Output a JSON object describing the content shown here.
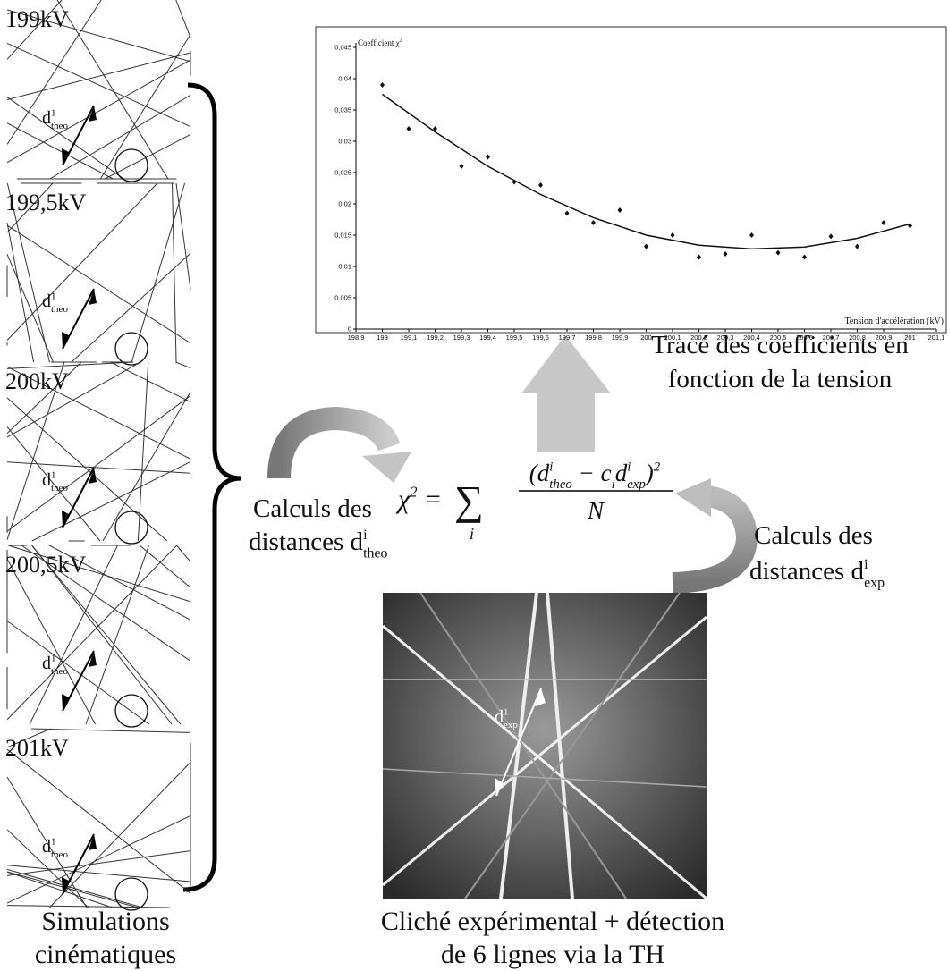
{
  "simulations": {
    "panels": [
      {
        "label": "199kV",
        "distance": [
          {
            "text": "d"
          },
          {
            "text": "1",
            "pos": "sup"
          },
          {
            "text": "theo",
            "pos": "sub"
          }
        ]
      },
      {
        "label": "199,5kV",
        "distance": [
          {
            "text": "d"
          },
          {
            "text": "1",
            "pos": "sup"
          },
          {
            "text": "theo",
            "pos": "sub"
          }
        ]
      },
      {
        "label": "200kV",
        "distance": [
          {
            "text": "d"
          },
          {
            "text": "1",
            "pos": "sup"
          },
          {
            "text": "theo",
            "pos": "sub"
          }
        ]
      },
      {
        "label": "200,5kV",
        "distance": [
          {
            "text": "d"
          },
          {
            "text": "1",
            "pos": "sup"
          },
          {
            "text": "theo",
            "pos": "sub"
          }
        ]
      },
      {
        "label": "201kV",
        "distance": [
          {
            "text": "d"
          },
          {
            "text": "1",
            "pos": "sup"
          },
          {
            "text": "theo",
            "pos": "sub"
          }
        ]
      }
    ],
    "caption": [
      "Simulations",
      "cinématiques"
    ]
  },
  "chart_data": {
    "type": "scatter",
    "y_title": [
      {
        "text": "Coefficient "
      },
      {
        "text": "χ"
      },
      {
        "text": "2",
        "pos": "sup"
      }
    ],
    "x_label": "Tension d'accélération (kV)",
    "x": [
      199,
      199.1,
      199.2,
      199.3,
      199.4,
      199.5,
      199.6,
      199.7,
      199.8,
      199.9,
      200,
      200.1,
      200.2,
      200.3,
      200.4,
      200.5,
      200.6,
      200.7,
      200.8,
      200.9,
      201
    ],
    "series": [
      {
        "color": "#111111",
        "values": [
          0.039,
          0.032,
          0.032,
          0.026,
          0.0275,
          0.0235,
          0.023,
          0.0185,
          0.017,
          0.019,
          0.0132,
          0.015,
          0.0115,
          0.012,
          0.015,
          0.0122,
          0.0115,
          0.0148,
          0.0132,
          0.017,
          0.0165
        ]
      }
    ],
    "trend": {
      "color": "#111111",
      "x": [
        199,
        199.2,
        199.4,
        199.6,
        199.8,
        200,
        200.2,
        200.4,
        200.6,
        200.8,
        201
      ],
      "values": [
        0.0375,
        0.0315,
        0.026,
        0.0215,
        0.0178,
        0.015,
        0.0134,
        0.0128,
        0.0131,
        0.0145,
        0.0168
      ]
    },
    "xlim": [
      198.9,
      201.1
    ],
    "ylim": [
      0,
      0.045
    ],
    "xticks": [
      {
        "value": 198.9,
        "label": "198,9"
      },
      {
        "value": 199,
        "label": "199"
      },
      {
        "value": 199.1,
        "label": "199,1"
      },
      {
        "value": 199.2,
        "label": "199,2"
      },
      {
        "value": 199.3,
        "label": "199,3"
      },
      {
        "value": 199.4,
        "label": "199,4"
      },
      {
        "value": 199.5,
        "label": "199,5"
      },
      {
        "value": 199.6,
        "label": "199,6"
      },
      {
        "value": 199.7,
        "label": "199,7"
      },
      {
        "value": 199.8,
        "label": "199,8"
      },
      {
        "value": 199.9,
        "label": "199,9"
      },
      {
        "value": 200,
        "label": "200"
      },
      {
        "value": 200.1,
        "label": "200,1"
      },
      {
        "value": 200.2,
        "label": "200,2"
      },
      {
        "value": 200.3,
        "label": "200,3"
      },
      {
        "value": 200.4,
        "label": "200,4"
      },
      {
        "value": 200.5,
        "label": "200,5"
      },
      {
        "value": 200.6,
        "label": "200,6"
      },
      {
        "value": 200.7,
        "label": "200,7"
      },
      {
        "value": 200.8,
        "label": "200,8"
      },
      {
        "value": 200.9,
        "label": "200,9"
      },
      {
        "value": 201,
        "label": "201"
      },
      {
        "value": 201.1,
        "label": "201,1"
      }
    ],
    "yticks": [
      0,
      {
        "value": 0.005,
        "label": "0,005"
      },
      {
        "value": 0.01,
        "label": "0,01"
      },
      {
        "value": 0.015,
        "label": "0,015"
      },
      {
        "value": 0.02,
        "label": "0,02"
      },
      {
        "value": 0.025,
        "label": "0,025"
      },
      {
        "value": 0.03,
        "label": "0,03"
      },
      {
        "value": 0.035,
        "label": "0,035"
      },
      {
        "value": 0.04,
        "label": "0,04"
      },
      {
        "value": 0.045,
        "label": "0,045"
      }
    ]
  },
  "plot_arrow_text": [
    "Tracé des coefficients en",
    "fonction de la tension"
  ],
  "left_calc": [
    [
      {
        "text": "Calculs des"
      }
    ],
    [
      {
        "text": "distances d"
      },
      {
        "text": "i",
        "pos": "sup"
      },
      {
        "text": "theo",
        "pos": "sub"
      }
    ]
  ],
  "right_calc": [
    [
      {
        "text": "Calculs des"
      }
    ],
    [
      {
        "text": "distances d"
      },
      {
        "text": "i",
        "pos": "sup"
      },
      {
        "text": "exp",
        "pos": "sub"
      }
    ]
  ],
  "formula": {
    "lhs": [
      {
        "text": "χ"
      },
      {
        "text": "2",
        "pos": "sup"
      },
      {
        "text": " = "
      }
    ],
    "sum": "∑",
    "index": "i",
    "numerator": [
      {
        "text": "(d"
      },
      {
        "text": "i",
        "pos": "sup"
      },
      {
        "text": "theo",
        "pos": "sub"
      },
      {
        "text": " − c"
      },
      {
        "text": "i",
        "pos": "sub"
      },
      {
        "text": "d"
      },
      {
        "text": "i",
        "pos": "sup"
      },
      {
        "text": "exp",
        "pos": "sub"
      },
      {
        "text": ")"
      },
      {
        "text": "2",
        "pos": "sup"
      }
    ],
    "denominator": "N"
  },
  "experiment": {
    "distance": [
      {
        "text": "d"
      },
      {
        "text": "1",
        "pos": "sup"
      },
      {
        "text": "exp",
        "pos": "sub"
      }
    ],
    "caption": [
      "Cliché expérimental + détection",
      "de 6 lignes via la TH"
    ]
  }
}
